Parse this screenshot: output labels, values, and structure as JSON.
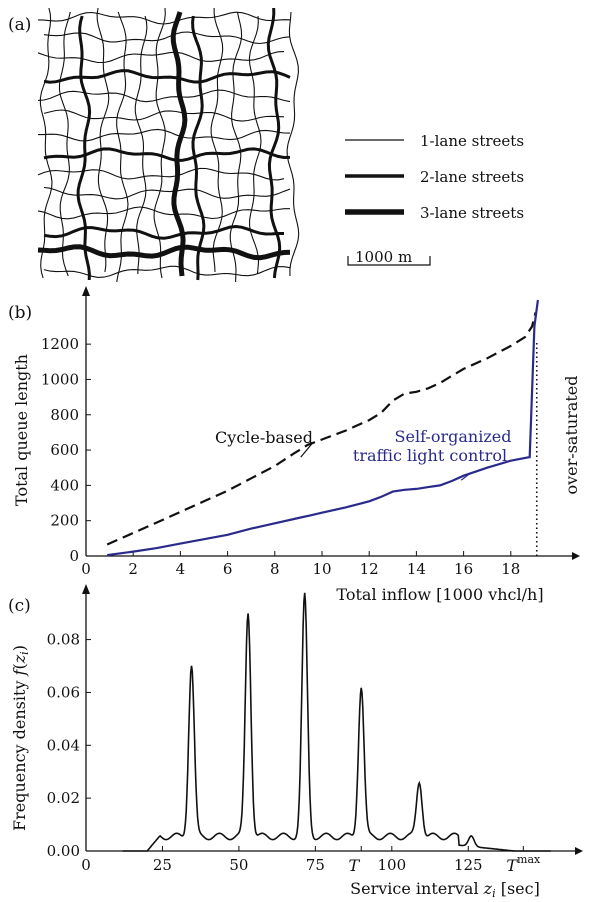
{
  "panel_a": {
    "label": "(a)",
    "legend": [
      {
        "label": "1-lane streets",
        "lanes": 1
      },
      {
        "label": "2-lane streets",
        "lanes": 2
      },
      {
        "label": "3-lane streets",
        "lanes": 3
      }
    ],
    "scale_bar_label": "1000 m"
  },
  "panel_b": {
    "label": "(b)"
  },
  "panel_c": {
    "label": "(c)"
  },
  "chart_data": [
    {
      "type": "line",
      "xlabel": "Total inflow [1000 vhcl/h]",
      "ylabel": "Total queue length",
      "xlim": [
        0,
        20
      ],
      "ylim": [
        0,
        1450
      ],
      "xticks": [
        0,
        2,
        4,
        6,
        8,
        10,
        12,
        14,
        16,
        18
      ],
      "yticks": [
        0,
        200,
        400,
        600,
        800,
        1000,
        1200
      ],
      "vline": {
        "x": 19.1,
        "label": "over-saturated"
      },
      "series": [
        {
          "name": "Cycle-based",
          "style": "dashed",
          "color": "#111111",
          "points": [
            [
              0.9,
              65
            ],
            [
              2,
              130
            ],
            [
              3,
              190
            ],
            [
              4,
              250
            ],
            [
              5,
              310
            ],
            [
              6,
              370
            ],
            [
              7,
              440
            ],
            [
              8,
              510
            ],
            [
              8.8,
              580
            ],
            [
              9.4,
              630
            ],
            [
              10,
              660
            ],
            [
              11,
              710
            ],
            [
              12,
              770
            ],
            [
              12.5,
              810
            ],
            [
              13,
              880
            ],
            [
              13.5,
              920
            ],
            [
              14,
              930
            ],
            [
              14.5,
              950
            ],
            [
              15,
              980
            ],
            [
              15.5,
              1020
            ],
            [
              16,
              1060
            ],
            [
              17,
              1120
            ],
            [
              18,
              1190
            ],
            [
              18.6,
              1240
            ],
            [
              18.9,
              1300
            ],
            [
              19.05,
              1380
            ]
          ]
        },
        {
          "name": "Self-organized traffic light control",
          "style": "solid",
          "color": "#2a2a8c",
          "points": [
            [
              0.9,
              5
            ],
            [
              2,
              25
            ],
            [
              3,
              45
            ],
            [
              4,
              70
            ],
            [
              5,
              95
            ],
            [
              6,
              120
            ],
            [
              7,
              155
            ],
            [
              8,
              185
            ],
            [
              9,
              215
            ],
            [
              9.5,
              230
            ],
            [
              10,
              245
            ],
            [
              11,
              275
            ],
            [
              12,
              310
            ],
            [
              12.5,
              335
            ],
            [
              13,
              365
            ],
            [
              13.5,
              375
            ],
            [
              14,
              380
            ],
            [
              14.5,
              390
            ],
            [
              15,
              400
            ],
            [
              15.5,
              425
            ],
            [
              16,
              455
            ],
            [
              17,
              500
            ],
            [
              18,
              540
            ],
            [
              18.8,
              560
            ],
            [
              19.0,
              1300
            ],
            [
              19.15,
              1450
            ]
          ]
        }
      ]
    },
    {
      "type": "line",
      "xlabel": "Service interval z_i [sec]",
      "ylabel": "Frequency density f(z_i)",
      "xlim": [
        0,
        155
      ],
      "ylim": [
        0,
        0.098
      ],
      "xticks": [
        0,
        25,
        50,
        75,
        100,
        125
      ],
      "xtick_labels": [
        "0",
        "25",
        "50",
        "75",
        "100",
        "125"
      ],
      "x_marks": [
        {
          "x": 90,
          "label": "T"
        },
        {
          "x": 143,
          "label": "T^max"
        }
      ],
      "yticks": [
        0,
        0.02,
        0.04,
        0.06,
        0.08
      ],
      "ytick_labels": [
        "0.00",
        "0.02",
        "0.04",
        "0.06",
        "0.08"
      ],
      "series": [
        {
          "style": "solid",
          "color": "#111111",
          "peaks": [
            [
              34.5,
              0.065
            ],
            [
              53,
              0.085
            ],
            [
              71.5,
              0.091
            ],
            [
              90,
              0.057
            ],
            [
              109,
              0.021
            ],
            [
              126,
              0.004
            ]
          ]
        }
      ]
    }
  ]
}
